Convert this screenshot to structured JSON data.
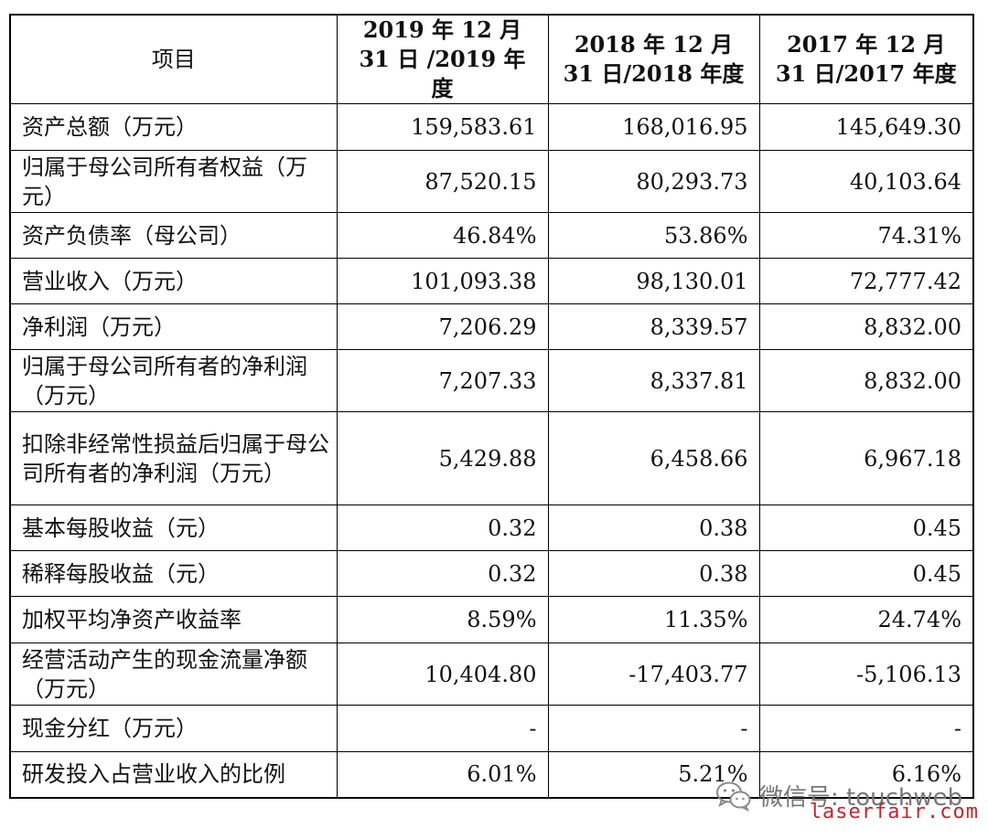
{
  "table": {
    "headers": [
      "项目",
      "2019 年 12 月 31 日 /2019 年度",
      "2018 年 12 月 31 日/2018 年度",
      "2017 年 12 月 31 日/2017 年度"
    ],
    "rows": [
      {
        "label": "资产总额（万元）",
        "v2019": "159,583.61",
        "v2018": "168,016.95",
        "v2017": "145,649.30"
      },
      {
        "label": "归属于母公司所有者权益（万元）",
        "v2019": "87,520.15",
        "v2018": "80,293.73",
        "v2017": "40,103.64"
      },
      {
        "label": "资产负债率（母公司）",
        "v2019": "46.84%",
        "v2018": "53.86%",
        "v2017": "74.31%"
      },
      {
        "label": "营业收入（万元）",
        "v2019": "101,093.38",
        "v2018": "98,130.01",
        "v2017": "72,777.42"
      },
      {
        "label": "净利润（万元）",
        "v2019": "7,206.29",
        "v2018": "8,339.57",
        "v2017": "8,832.00"
      },
      {
        "label": "归属于母公司所有者的净利润（万元）",
        "v2019": "7,207.33",
        "v2018": "8,337.81",
        "v2017": "8,832.00"
      },
      {
        "label": "扣除非经常性损益后归属于母公司所有者的净利润（万元）",
        "v2019": "5,429.88",
        "v2018": "6,458.66",
        "v2017": "6,967.18"
      },
      {
        "label": "基本每股收益（元）",
        "v2019": "0.32",
        "v2018": "0.38",
        "v2017": "0.45"
      },
      {
        "label": "稀释每股收益（元）",
        "v2019": "0.32",
        "v2018": "0.38",
        "v2017": "0.45"
      },
      {
        "label": "加权平均净资产收益率",
        "v2019": "8.59%",
        "v2018": "11.35%",
        "v2017": "24.74%"
      },
      {
        "label": "经营活动产生的现金流量净额（万元）",
        "v2019": "10,404.80",
        "v2018": "-17,403.77",
        "v2017": "-5,106.13"
      },
      {
        "label": "现金分红（万元）",
        "v2019": "-",
        "v2018": "-",
        "v2017": "-"
      },
      {
        "label": "研发投入占营业收入的比例",
        "v2019": "6.01%",
        "v2018": "5.21%",
        "v2017": "6.16%"
      }
    ]
  },
  "watermark": {
    "icon": "wechat-icon",
    "text": "微信号: touchweb"
  },
  "site_mark": "laserfair.com",
  "colors": {
    "border": "#000000",
    "text": "#111111",
    "watermark": "#777777",
    "site_mark": "#c4262e"
  }
}
